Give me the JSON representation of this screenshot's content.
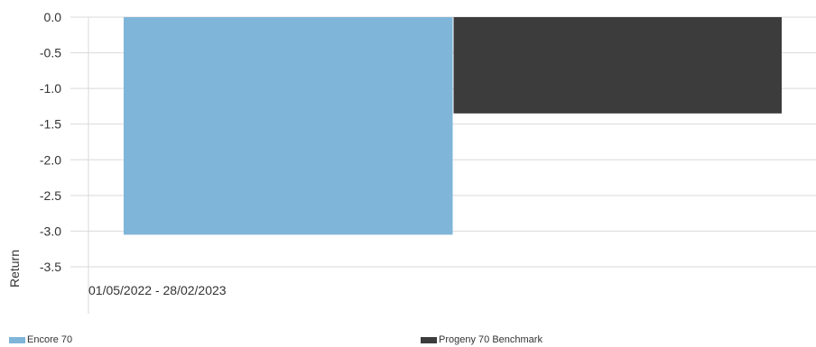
{
  "chart_data": {
    "type": "bar",
    "title": "",
    "xlabel": "",
    "ylabel": "Return",
    "categories": [
      "01/05/2022 - 28/02/2023"
    ],
    "series": [
      {
        "name": "Encore 70",
        "color": "#7fb5d9",
        "values": [
          -3.05
        ]
      },
      {
        "name": "Progeny 70 Benchmark",
        "color": "#3c3c3c",
        "values": [
          -1.35
        ]
      }
    ],
    "ylim": [
      -3.5,
      0.0
    ],
    "yticks": [
      "0.0",
      "-0.5",
      "-1.0",
      "-1.5",
      "-2.0",
      "-2.5",
      "-3.0",
      "-3.5"
    ],
    "grid": true,
    "legend": "bottom"
  }
}
